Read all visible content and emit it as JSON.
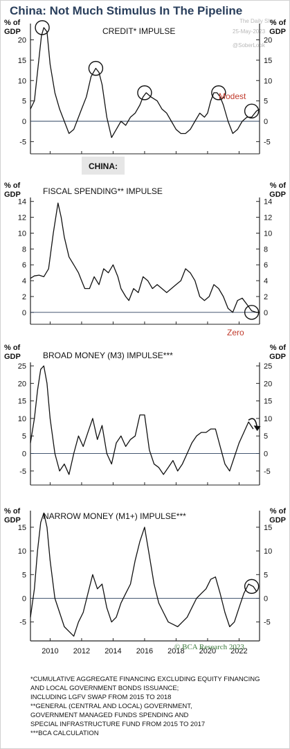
{
  "title": "China: Not Much Stimulus In The Pipeline",
  "watermark": {
    "line1": "The Daily Shot",
    "line2": "25-May-2023",
    "line3": "@SoberLook"
  },
  "region_label": "CHINA:",
  "copyright": "© BCA Research 2023",
  "footnotes": [
    "*CUMULATIVE AGGREGATE FINANCING EXCLUDING EQUITY FINANCING",
    "AND LOCAL GOVERNMENT BONDS ISSUANCE;",
    "INCLUDING LGFV SWAP FROM 2015 TO 2018",
    "**GENERAL (CENTRAL AND LOCAL) GOVERNMENT,",
    "GOVERNMENT MANAGED FUNDS SPENDING AND",
    "SPECIAL INFRASTRUCTURE FUND FROM 2015 TO 2017",
    "***BCA CALCULATION"
  ],
  "colors": {
    "line": "#111111",
    "title": "#2a3f5c",
    "annotation": "#c0392b",
    "copyright": "#3b7a3b",
    "zero_line": "#2a3f5c"
  },
  "chart_data": [
    {
      "type": "line",
      "title": "CREDIT* IMPULSE",
      "ylabel": "% of GDP",
      "ylim": [
        -8,
        24
      ],
      "yticks": [
        -5,
        0,
        5,
        10,
        15,
        20
      ],
      "xlim": [
        2008.75,
        2023.3
      ],
      "annotation": "Modest",
      "series": [
        {
          "x": [
            2008.75,
            2009.0,
            2009.25,
            2009.45,
            2009.6,
            2009.8,
            2010.0,
            2010.3,
            2010.6,
            2010.9,
            2011.2,
            2011.5,
            2011.8,
            2012.0,
            2012.3,
            2012.6,
            2012.9,
            2013.1,
            2013.3,
            2013.6,
            2013.9,
            2014.2,
            2014.5,
            2014.8,
            2015.1,
            2015.4,
            2015.7,
            2015.9,
            2016.1,
            2016.4,
            2016.8,
            2017.1,
            2017.4,
            2017.7,
            2018.0,
            2018.3,
            2018.6,
            2018.9,
            2019.2,
            2019.5,
            2019.8,
            2020.0,
            2020.2,
            2020.4,
            2020.6,
            2020.8,
            2021.0,
            2021.3,
            2021.6,
            2021.9,
            2022.2,
            2022.5,
            2022.8,
            2023.1,
            2023.3
          ],
          "values": [
            3.0,
            5.0,
            14.0,
            21.0,
            23.0,
            22.0,
            14.0,
            7.0,
            3.0,
            0.0,
            -3.0,
            -2.0,
            1.0,
            3.0,
            6.0,
            11.0,
            13.0,
            12.0,
            9.0,
            1.0,
            -4.0,
            -2.0,
            0.0,
            -1.0,
            1.0,
            2.0,
            4.0,
            6.0,
            7.0,
            6.0,
            5.0,
            3.0,
            2.0,
            0.0,
            -2.0,
            -3.0,
            -3.0,
            -2.0,
            0.0,
            2.0,
            1.0,
            2.0,
            5.0,
            7.0,
            7.0,
            6.0,
            4.0,
            0.0,
            -3.0,
            -2.0,
            0.0,
            1.0,
            1.0,
            2.5,
            3.0
          ]
        }
      ],
      "circles": [
        {
          "x": 2009.5,
          "y": 23.0
        },
        {
          "x": 2012.9,
          "y": 13.0
        },
        {
          "x": 2016.0,
          "y": 7.0
        },
        {
          "x": 2020.7,
          "y": 7.0
        },
        {
          "x": 2022.8,
          "y": 2.5
        }
      ]
    },
    {
      "type": "line",
      "title": "FISCAL SPENDING** IMPULSE",
      "ylabel": "% of GDP",
      "ylim": [
        -1.5,
        14.5
      ],
      "yticks": [
        0,
        2,
        4,
        6,
        8,
        10,
        12,
        14
      ],
      "xlim": [
        2008.75,
        2023.3
      ],
      "annotation": "Zero",
      "series": [
        {
          "x": [
            2008.75,
            2009.0,
            2009.3,
            2009.6,
            2009.9,
            2010.2,
            2010.5,
            2010.7,
            2010.9,
            2011.2,
            2011.5,
            2011.8,
            2012.0,
            2012.2,
            2012.5,
            2012.8,
            2013.1,
            2013.4,
            2013.7,
            2014.0,
            2014.3,
            2014.5,
            2014.8,
            2015.0,
            2015.3,
            2015.6,
            2015.9,
            2016.2,
            2016.5,
            2016.8,
            2017.1,
            2017.4,
            2017.7,
            2018.0,
            2018.3,
            2018.6,
            2018.9,
            2019.2,
            2019.5,
            2019.8,
            2020.1,
            2020.4,
            2020.7,
            2021.0,
            2021.3,
            2021.6,
            2021.9,
            2022.2,
            2022.5,
            2022.8,
            2023.1,
            2023.3
          ],
          "values": [
            4.3,
            4.6,
            4.7,
            4.5,
            5.5,
            10.0,
            13.8,
            12.0,
            9.5,
            7.0,
            6.0,
            5.0,
            4.0,
            3.0,
            3.0,
            4.5,
            3.5,
            5.5,
            5.0,
            6.0,
            4.5,
            3.0,
            2.0,
            1.5,
            3.0,
            2.5,
            4.5,
            4.0,
            3.0,
            3.5,
            3.0,
            2.5,
            3.0,
            3.5,
            4.0,
            5.5,
            5.0,
            4.0,
            2.0,
            1.5,
            2.0,
            3.5,
            3.0,
            2.0,
            0.5,
            0.0,
            1.5,
            1.8,
            1.0,
            0.2,
            0.0,
            0.0
          ]
        }
      ],
      "circles": [
        {
          "x": 2022.8,
          "y": 0.0
        }
      ]
    },
    {
      "type": "line",
      "title": "BROAD MONEY (M3) IMPULSE***",
      "ylabel": "% of GDP",
      "ylim": [
        -9,
        26
      ],
      "yticks": [
        -5,
        0,
        5,
        10,
        15,
        20,
        25
      ],
      "xlim": [
        2008.75,
        2023.3
      ],
      "series": [
        {
          "x": [
            2008.75,
            2009.0,
            2009.2,
            2009.4,
            2009.6,
            2009.8,
            2010.0,
            2010.3,
            2010.6,
            2010.9,
            2011.2,
            2011.5,
            2011.8,
            2012.1,
            2012.4,
            2012.7,
            2013.0,
            2013.3,
            2013.6,
            2013.9,
            2014.2,
            2014.5,
            2014.8,
            2015.1,
            2015.4,
            2015.7,
            2016.0,
            2016.3,
            2016.6,
            2016.9,
            2017.2,
            2017.5,
            2017.8,
            2018.1,
            2018.4,
            2018.7,
            2019.0,
            2019.3,
            2019.6,
            2019.9,
            2020.2,
            2020.5,
            2020.8,
            2021.1,
            2021.4,
            2021.7,
            2022.0,
            2022.3,
            2022.6,
            2022.9
          ],
          "values": [
            3.0,
            10.0,
            18.0,
            24.0,
            25.0,
            20.0,
            10.0,
            0.0,
            -5.0,
            -3.0,
            -6.0,
            0.0,
            5.0,
            2.0,
            6.0,
            10.0,
            4.0,
            8.0,
            0.0,
            -3.0,
            3.0,
            5.0,
            2.0,
            4.0,
            5.0,
            11.0,
            11.0,
            1.0,
            -3.0,
            -4.0,
            -6.0,
            -4.0,
            -2.0,
            -5.0,
            -3.0,
            0.0,
            3.0,
            5.0,
            6.0,
            6.0,
            7.0,
            7.0,
            2.0,
            -3.0,
            -5.0,
            -1.0,
            3.0,
            6.0,
            9.0,
            7.0
          ]
        }
      ],
      "arrow": {
        "from": [
          2022.6,
          9.5
        ],
        "to": [
          2023.15,
          7.0
        ]
      }
    },
    {
      "type": "line",
      "title": "NARROW MONEY (M1+) IMPULSE***",
      "ylabel": "% of GDP",
      "ylim": [
        -9,
        18.5
      ],
      "yticks": [
        -5,
        0,
        5,
        10,
        15
      ],
      "xlim": [
        2008.75,
        2023.3
      ],
      "xticks": [
        2010,
        2012,
        2014,
        2016,
        2018,
        2020,
        2022
      ],
      "series": [
        {
          "x": [
            2008.75,
            2009.0,
            2009.2,
            2009.4,
            2009.6,
            2009.8,
            2010.0,
            2010.3,
            2010.6,
            2010.9,
            2011.2,
            2011.5,
            2011.8,
            2012.1,
            2012.4,
            2012.7,
            2013.0,
            2013.3,
            2013.6,
            2013.9,
            2014.2,
            2014.5,
            2014.8,
            2015.1,
            2015.4,
            2015.7,
            2016.0,
            2016.3,
            2016.6,
            2016.9,
            2017.2,
            2017.5,
            2017.8,
            2018.1,
            2018.4,
            2018.7,
            2019.0,
            2019.3,
            2019.6,
            2019.9,
            2020.2,
            2020.5,
            2020.8,
            2021.1,
            2021.4,
            2021.7,
            2022.0,
            2022.3,
            2022.6,
            2022.9,
            2023.1
          ],
          "values": [
            -4.0,
            2.0,
            10.0,
            16.0,
            18.0,
            15.0,
            8.0,
            0.0,
            -3.0,
            -6.0,
            -7.0,
            -8.0,
            -5.0,
            -3.0,
            1.0,
            5.0,
            2.0,
            3.0,
            -2.0,
            -5.0,
            -4.0,
            -1.0,
            1.0,
            3.0,
            8.0,
            12.0,
            15.0,
            9.0,
            3.0,
            -1.0,
            -3.0,
            -5.0,
            -5.5,
            -6.0,
            -5.0,
            -4.0,
            -2.0,
            0.0,
            1.0,
            2.0,
            4.0,
            4.5,
            1.0,
            -3.0,
            -6.0,
            -5.0,
            -2.0,
            1.0,
            3.0,
            2.5,
            1.5
          ]
        }
      ],
      "circles": [
        {
          "x": 2022.8,
          "y": 2.5
        }
      ]
    }
  ]
}
